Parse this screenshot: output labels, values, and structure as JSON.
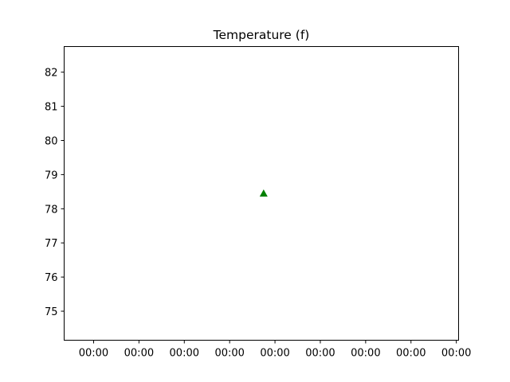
{
  "chart_data": {
    "type": "scatter",
    "title": "Temperature (f)",
    "xlabel": "",
    "ylabel": "",
    "ylim": [
      74.15,
      82.75
    ],
    "y_ticks": [
      75,
      76,
      77,
      78,
      79,
      80,
      81,
      82
    ],
    "x_tick_labels": [
      "00:00",
      "00:00",
      "00:00",
      "00:00",
      "00:00",
      "00:00",
      "00:00",
      "00:00",
      "00:00"
    ],
    "xlim": [
      -0.65,
      8.05
    ],
    "grid": false,
    "legend": "none",
    "series": [
      {
        "marker": "triangle-up",
        "color": "#008000",
        "points": [
          {
            "x": 3.75,
            "y": 78.45
          }
        ]
      }
    ]
  }
}
